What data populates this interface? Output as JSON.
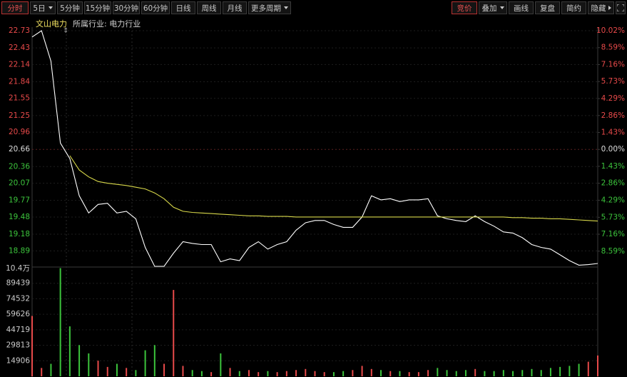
{
  "toolbar": {
    "left": [
      "分时",
      "5日",
      "5分钟",
      "15分钟",
      "30分钟",
      "60分钟",
      "日线",
      "周线",
      "月线",
      "更多周期"
    ],
    "right": [
      "竞价",
      "叠加",
      "画线",
      "复盘",
      "简约",
      "隐藏"
    ]
  },
  "info": {
    "stock_name": "文山电力",
    "industry": "所属行业: 电力行业"
  },
  "chart_data": [
    {
      "type": "line",
      "x": [
        0,
        4,
        8,
        12,
        16,
        20,
        24,
        28,
        32,
        36,
        40,
        44,
        48,
        52,
        56,
        60,
        64,
        68,
        72,
        76,
        80,
        84,
        88,
        92,
        96,
        100,
        104,
        108,
        112,
        116,
        120,
        124,
        128,
        132,
        136,
        140,
        144,
        148,
        152,
        156,
        160,
        164,
        168,
        172,
        176,
        180,
        184,
        188,
        192,
        196,
        200,
        204,
        208,
        212,
        216,
        220,
        224,
        228,
        232,
        236,
        240
      ],
      "xlim": [
        0,
        240
      ],
      "series": [
        {
          "color": "#ffffff",
          "values": [
            22.62,
            22.73,
            22.2,
            20.77,
            20.5,
            19.85,
            19.55,
            19.7,
            19.72,
            19.55,
            19.58,
            19.45,
            18.95,
            18.62,
            18.62,
            18.85,
            19.05,
            19.02,
            19.0,
            19.0,
            18.7,
            18.75,
            18.72,
            18.95,
            19.05,
            18.92,
            19.0,
            19.05,
            19.25,
            19.38,
            19.42,
            19.42,
            19.35,
            19.3,
            19.3,
            19.48,
            19.85,
            19.78,
            19.8,
            19.75,
            19.78,
            19.78,
            19.8,
            19.5,
            19.45,
            19.42,
            19.4,
            19.5,
            19.4,
            19.32,
            19.22,
            19.2,
            19.12,
            19.0,
            18.95,
            18.92,
            18.82,
            18.72,
            18.64,
            18.65,
            18.67
          ]
        },
        {
          "color": "#d8d84a",
          "values": [
            null,
            null,
            null,
            null,
            20.55,
            20.3,
            20.18,
            20.1,
            20.07,
            20.05,
            20.03,
            20.0,
            19.97,
            19.9,
            19.8,
            19.65,
            19.58,
            19.56,
            19.55,
            19.54,
            19.53,
            19.52,
            19.51,
            19.5,
            19.5,
            19.49,
            19.49,
            19.49,
            19.48,
            19.48,
            19.48,
            19.48,
            19.48,
            19.48,
            19.48,
            19.48,
            19.48,
            19.48,
            19.48,
            19.48,
            19.48,
            19.48,
            19.48,
            19.48,
            19.48,
            19.48,
            19.48,
            19.48,
            19.48,
            19.48,
            19.48,
            19.47,
            19.47,
            19.46,
            19.46,
            19.45,
            19.45,
            19.44,
            19.43,
            19.42,
            19.41
          ]
        }
      ],
      "ylim": [
        18.62,
        22.73
      ],
      "yticks": [
        22.73,
        22.43,
        22.14,
        21.84,
        21.55,
        21.25,
        20.96,
        20.66,
        20.36,
        20.07,
        19.77,
        19.48,
        19.18,
        18.89
      ],
      "y2lim": [
        -9.87,
        10.02
      ],
      "y2ticks": [
        {
          "value": 10.02,
          "label": "10.02%"
        },
        {
          "value": 8.59,
          "label": "8.59%"
        },
        {
          "value": 7.16,
          "label": "7.16%"
        },
        {
          "value": 5.73,
          "label": "5.73%"
        },
        {
          "value": 4.29,
          "label": "4.29%"
        },
        {
          "value": 2.86,
          "label": "2.86%"
        },
        {
          "value": 1.43,
          "label": "1.43%"
        },
        {
          "value": 0.0,
          "label": "0.00%"
        },
        {
          "value": -1.43,
          "label": "1.43%"
        },
        {
          "value": -2.86,
          "label": "2.86%"
        },
        {
          "value": -4.29,
          "label": "4.29%"
        },
        {
          "value": -5.73,
          "label": "5.73%"
        },
        {
          "value": -7.16,
          "label": "7.16%"
        },
        {
          "value": -8.59,
          "label": "8.59%"
        }
      ],
      "up_color": "#e84a4a",
      "down_color": "#3cc43c",
      "flat_color": "#dddddd",
      "grid": true
    },
    {
      "type": "bar",
      "x": [
        0,
        4,
        8,
        12,
        16,
        20,
        24,
        28,
        32,
        36,
        40,
        44,
        48,
        52,
        56,
        60,
        64,
        68,
        72,
        76,
        80,
        84,
        88,
        92,
        96,
        100,
        104,
        108,
        112,
        116,
        120,
        124,
        128,
        132,
        136,
        140,
        144,
        148,
        152,
        156,
        160,
        164,
        168,
        172,
        176,
        180,
        184,
        188,
        192,
        196,
        200,
        204,
        208,
        212,
        216,
        220,
        224,
        228,
        232,
        236,
        240
      ],
      "xlim": [
        0,
        240
      ],
      "values": [
        58000,
        8000,
        12000,
        104000,
        48000,
        30000,
        22000,
        15000,
        9000,
        12000,
        8000,
        6000,
        25000,
        30000,
        12000,
        83000,
        10000,
        6000,
        5000,
        4000,
        22000,
        8000,
        5000,
        6000,
        4000,
        5000,
        4000,
        5000,
        6000,
        7000,
        5000,
        4000,
        4000,
        5000,
        6000,
        10000,
        7000,
        6000,
        5000,
        5000,
        4000,
        4000,
        6000,
        8000,
        6000,
        5000,
        6000,
        7000,
        5000,
        5000,
        6000,
        5000,
        6000,
        7000,
        6000,
        8000,
        9000,
        10000,
        12000,
        14000,
        20000
      ],
      "ylim": [
        0,
        104345
      ],
      "yticks": [
        {
          "value": 104345,
          "label": "10.4万"
        },
        89439,
        74532,
        59626,
        44719,
        29813,
        14906
      ],
      "up_color": "#e84a4a",
      "down_color": "#3cc43c",
      "grid": true
    }
  ]
}
